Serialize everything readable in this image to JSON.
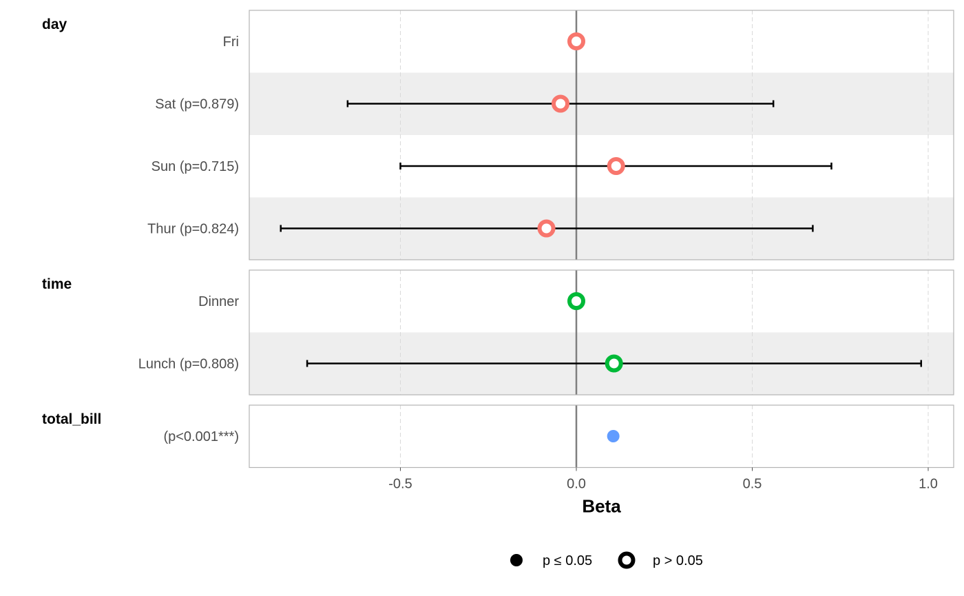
{
  "chart_data": {
    "type": "forest",
    "xlabel": "Beta",
    "xlim": [
      -0.93,
      1.07
    ],
    "x_ticks": [
      -0.5,
      0.0,
      0.5,
      1.0
    ],
    "x_tick_labels": [
      "-0.5",
      "0.0",
      "0.5",
      "1.0"
    ],
    "reference_line": 0,
    "grid": "vertical dashed",
    "legend_position": "bottom",
    "panels": [
      {
        "title": "day",
        "color": "#F8766D",
        "rows": [
          {
            "label": "Fri",
            "beta": 0.0,
            "low": null,
            "high": null,
            "significant": false
          },
          {
            "label": "Sat (p=0.879)",
            "beta": -0.045,
            "low": -0.65,
            "high": 0.56,
            "significant": false
          },
          {
            "label": "Sun (p=0.715)",
            "beta": 0.113,
            "low": -0.5,
            "high": 0.725,
            "significant": false
          },
          {
            "label": "Thur (p=0.824)",
            "beta": -0.085,
            "low": -0.84,
            "high": 0.672,
            "significant": false
          }
        ]
      },
      {
        "title": "time",
        "color": "#00BA38",
        "rows": [
          {
            "label": "Dinner",
            "beta": 0.0,
            "low": null,
            "high": null,
            "significant": false
          },
          {
            "label": "Lunch (p=0.808)",
            "beta": 0.107,
            "low": -0.765,
            "high": 0.98,
            "significant": false
          }
        ]
      },
      {
        "title": "total_bill",
        "color": "#619CFF",
        "rows": [
          {
            "label": "(p<0.001***)",
            "beta": 0.105,
            "low": 0.097,
            "high": 0.113,
            "significant": true
          }
        ]
      }
    ],
    "legend": [
      {
        "label": "p ≤ 0.05",
        "marker": "filled"
      },
      {
        "label": "p > 0.05",
        "marker": "open"
      }
    ]
  }
}
